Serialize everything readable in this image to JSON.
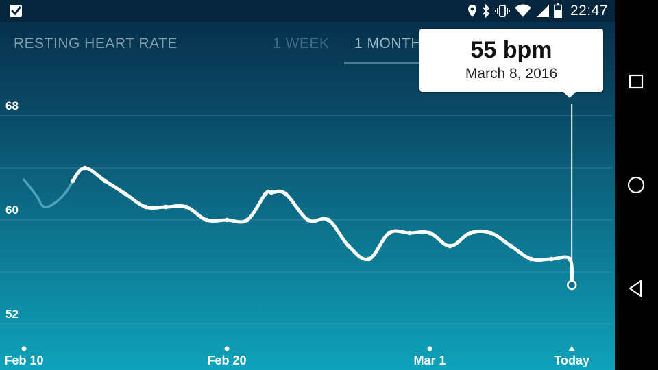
{
  "status_bar": {
    "time": "22:47",
    "icons": [
      "location-icon",
      "bluetooth-icon",
      "vibrate-icon",
      "wifi-icon",
      "signal-icon",
      "battery-icon"
    ],
    "left_icon": "fitbit-check-icon"
  },
  "header": {
    "title": "RESTING HEART RATE",
    "tabs": [
      {
        "label": "1 WEEK",
        "selected": false
      },
      {
        "label": "1 MONTH",
        "selected": true
      }
    ]
  },
  "tooltip": {
    "value": "55 bpm",
    "date": "March 8, 2016"
  },
  "navbar": {
    "buttons": [
      "recent-apps-icon",
      "home-icon",
      "back-icon"
    ]
  },
  "chart_data": {
    "type": "line",
    "xlabel": "",
    "ylabel": "",
    "y_ticks": [
      52,
      60,
      68
    ],
    "ylim": [
      52,
      68
    ],
    "x_tick_labels": [
      "Feb 10",
      "Feb 20",
      "Mar 1",
      "Today"
    ],
    "x_tick_days": [
      0,
      10,
      20,
      27
    ],
    "grid": true,
    "series": [
      {
        "days": [
          0,
          0.6,
          1,
          1.6,
          2.1,
          2.4
        ],
        "values": [
          63.1,
          61.9,
          61.0,
          61.4,
          62.2,
          63.0
        ],
        "faded": true
      },
      {
        "days": [
          2.4,
          3,
          4,
          5,
          6,
          7,
          8,
          9,
          10,
          11,
          11.9,
          12.2,
          12.9,
          14,
          15,
          16,
          17,
          18,
          19,
          20,
          21,
          22,
          23,
          24,
          25,
          26,
          26.9,
          27
        ],
        "values": [
          63.0,
          64.0,
          63.0,
          62.0,
          61.0,
          61.0,
          61.0,
          60.0,
          60.0,
          60.0,
          62.0,
          62.1,
          62.0,
          60.0,
          60.0,
          58.0,
          57.0,
          59.0,
          59.0,
          59.0,
          58.0,
          59.0,
          59.0,
          58.0,
          57.0,
          57.0,
          57.0,
          55.0
        ],
        "faded": false
      }
    ],
    "selected": {
      "day": 27,
      "value": 55
    }
  },
  "colors": {
    "line": "#ffffff",
    "faded_line": "#4fa2bb",
    "grid": "#5a9ab0",
    "tooltip_bg": "#ffffff"
  }
}
